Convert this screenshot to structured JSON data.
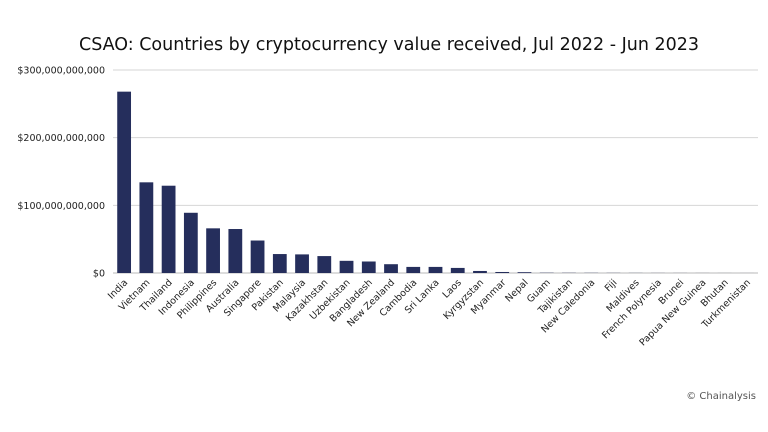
{
  "chart_data": {
    "type": "bar",
    "title": "CSAO: Countries by cryptocurrency value received, Jul 2022 - Jun 2023",
    "xlabel": "",
    "ylabel": "",
    "ylim": [
      0,
      300000000000
    ],
    "yticks": [
      0,
      100000000000,
      200000000000,
      300000000000
    ],
    "ytick_labels": [
      "$0",
      "$100,000,000,000",
      "$200,000,000,000",
      "$300,000,000,000"
    ],
    "grid": true,
    "bar_color": "#252e5c",
    "categories": [
      "India",
      "Vietnam",
      "Thailand",
      "Indonesia",
      "Philippines",
      "Australia",
      "Singapore",
      "Pakistan",
      "Malaysia",
      "Kazakhstan",
      "Uzbekistan",
      "Bangladesh",
      "New Zealand",
      "Cambodia",
      "Sri Lanka",
      "Laos",
      "Kyrgyzstan",
      "Myanmar",
      "Nepal",
      "Guam",
      "Tajikistan",
      "New Caledonia",
      "Fiji",
      "Maldives",
      "French Polynesia",
      "Brunei",
      "Papua New Guinea",
      "Bhutan",
      "Turkmenistan"
    ],
    "values": [
      268000000000,
      134000000000,
      129000000000,
      89000000000,
      66000000000,
      65000000000,
      48000000000,
      28000000000,
      27500000000,
      25000000000,
      18000000000,
      17000000000,
      13000000000,
      9000000000,
      9000000000,
      7500000000,
      3000000000,
      1500000000,
      1200000000,
      400000000,
      300000000,
      250000000,
      200000000,
      150000000,
      120000000,
      100000000,
      80000000,
      50000000,
      30000000
    ]
  },
  "credit": "© Chainalysis"
}
